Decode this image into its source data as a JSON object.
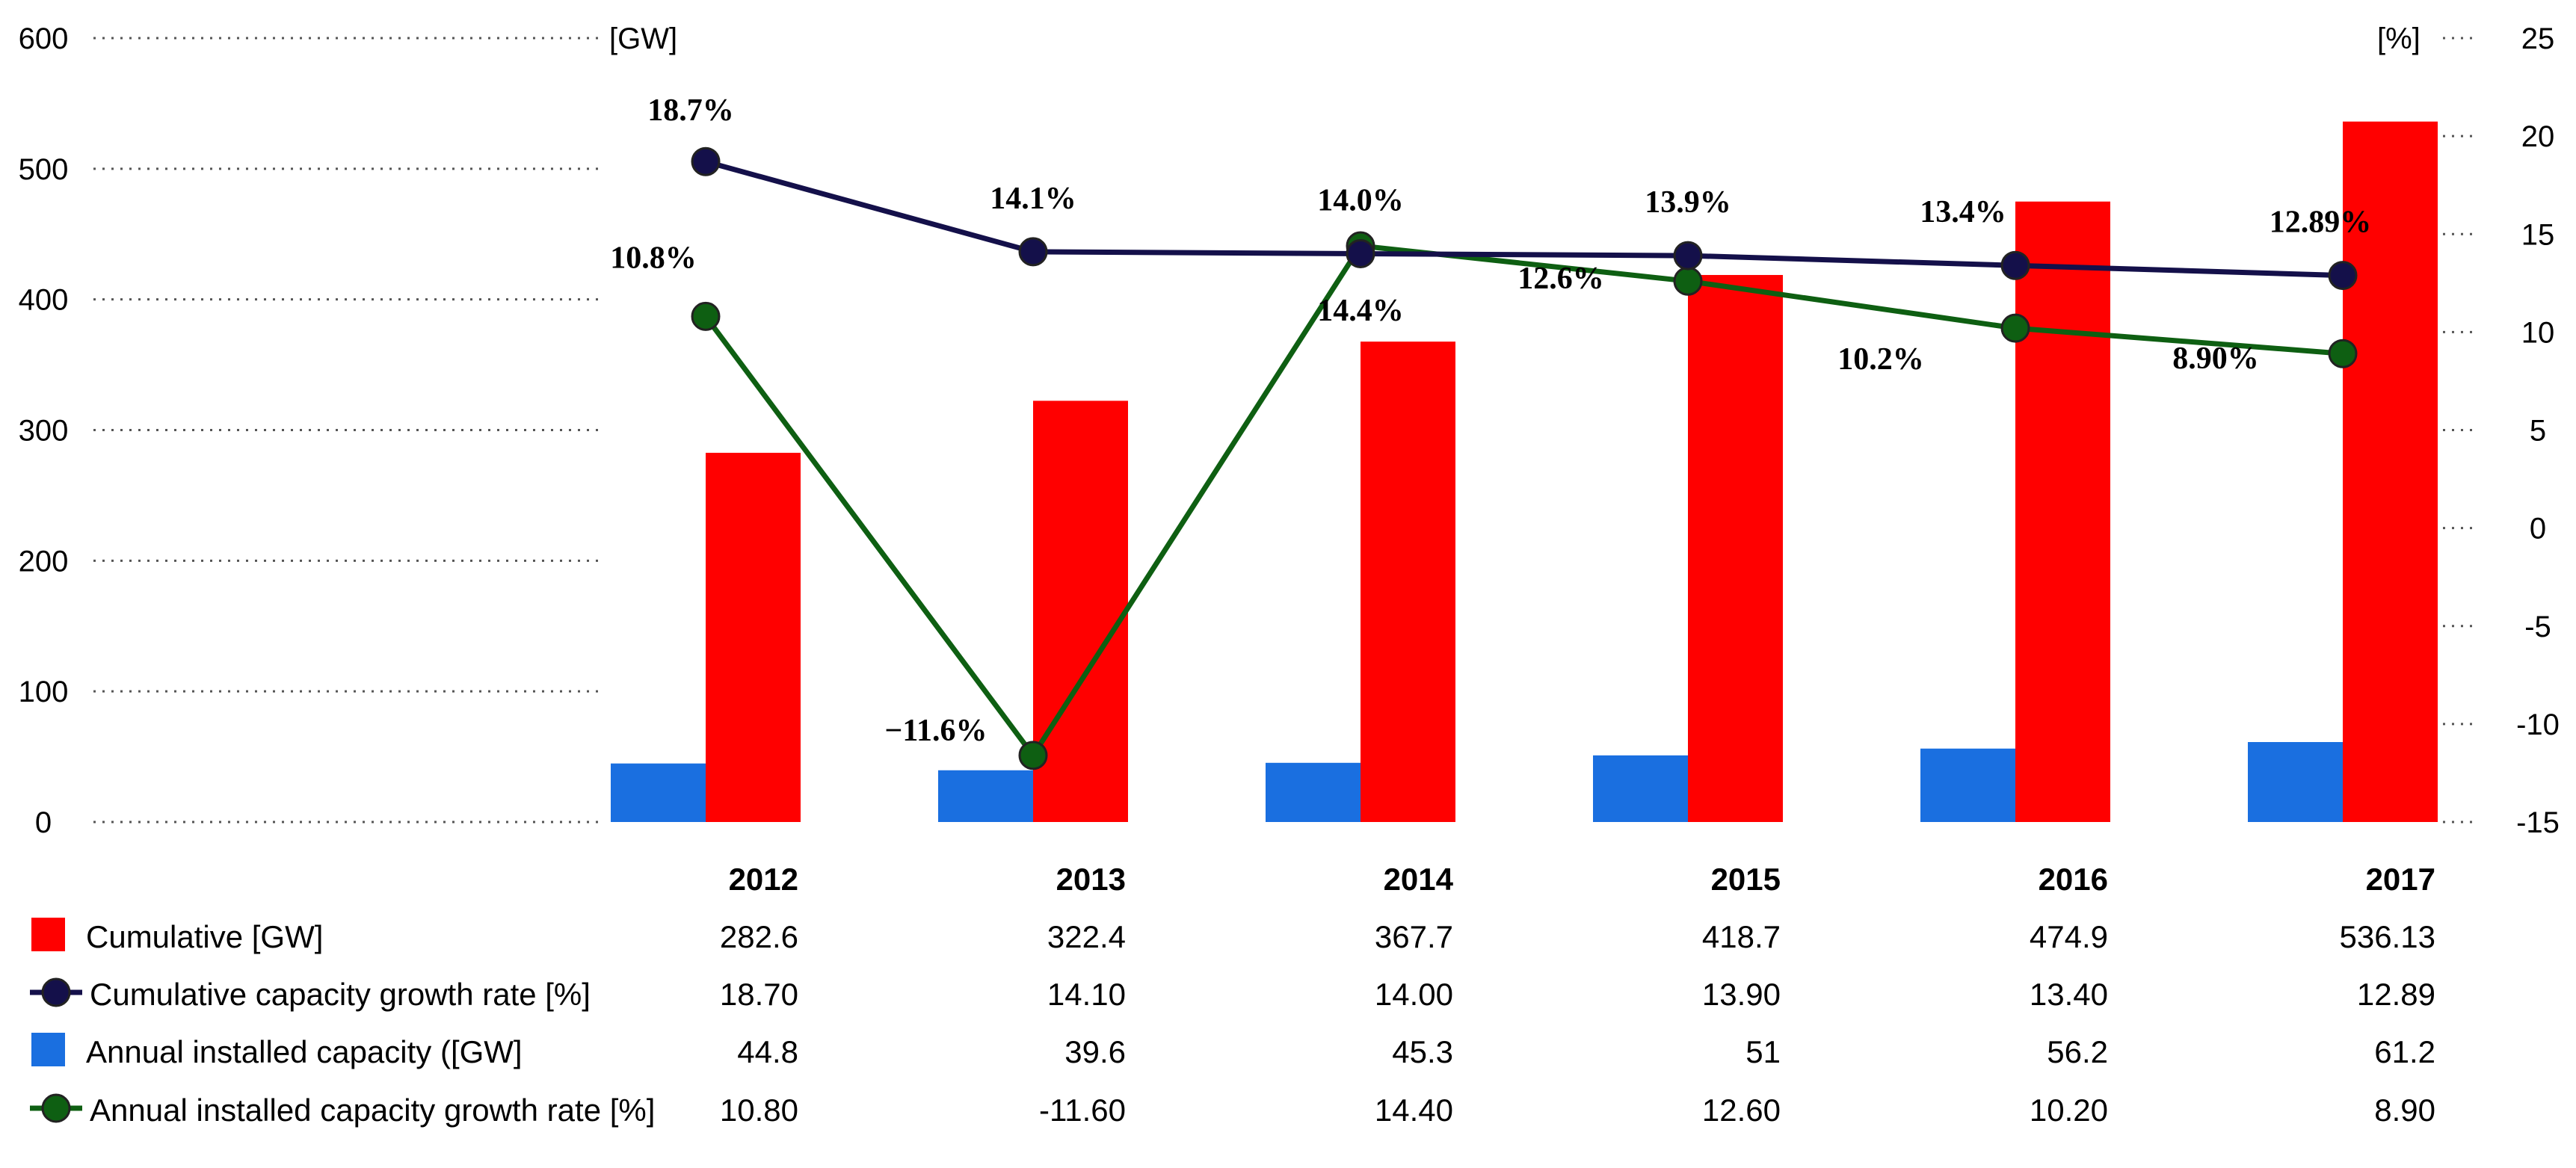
{
  "chart_data": {
    "type": "bar",
    "categories": [
      "2012",
      "2013",
      "2014",
      "2015",
      "2016",
      "2017"
    ],
    "left_axis": {
      "unit": "[GW]",
      "ylim": [
        0,
        600
      ],
      "ticks": [
        0,
        100,
        200,
        300,
        400,
        500,
        600
      ],
      "tick_labels": [
        "0",
        "100",
        "200",
        "300",
        "400",
        "500",
        "600"
      ]
    },
    "right_axis": {
      "unit": "[%]",
      "ylim": [
        -15,
        25
      ],
      "ticks": [
        -15,
        -10,
        -5,
        0,
        5,
        10,
        15,
        20,
        25
      ],
      "tick_labels": [
        "-15",
        "-10",
        "-5",
        "0",
        "5",
        "10",
        "15",
        "20",
        "25"
      ]
    },
    "series": [
      {
        "key": "cumulative",
        "name": "Cumulative [GW]",
        "kind": "bar",
        "axis": "left",
        "color": "#ff0000",
        "values": [
          282.6,
          322.4,
          367.7,
          418.7,
          474.9,
          536.13
        ],
        "table_values": [
          "282.6",
          "322.4",
          "367.7",
          "418.7",
          "474.9",
          "536.13"
        ]
      },
      {
        "key": "cum_growth",
        "name": "Cumulative capacity growth rate [%]",
        "kind": "line",
        "axis": "right",
        "color": "#14104a",
        "values": [
          18.7,
          14.1,
          14.0,
          13.9,
          13.4,
          12.89
        ],
        "labels": [
          "18.7%",
          "14.1%",
          "14.0%",
          "13.9%",
          "13.4%",
          "12.89%"
        ],
        "table_values": [
          "18.70",
          "14.10",
          "14.00",
          "13.90",
          "13.40",
          "12.89"
        ]
      },
      {
        "key": "annual",
        "name": "Annual installed capacity ([GW]",
        "kind": "bar",
        "axis": "left",
        "color": "#1a6fe0",
        "values": [
          44.8,
          39.6,
          45.3,
          51,
          56.2,
          61.2
        ],
        "table_values": [
          "44.8",
          "39.6",
          "45.3",
          "51",
          "56.2",
          "61.2"
        ]
      },
      {
        "key": "annual_growth",
        "name": "Annual installed capacity growth rate [%]",
        "kind": "line",
        "axis": "right",
        "color": "#0e5f12",
        "values": [
          10.8,
          -11.6,
          14.4,
          12.6,
          10.2,
          8.9
        ],
        "labels": [
          "10.8%",
          "−11.6%",
          "14.4%",
          "12.6%",
          "10.2%",
          "8.90%"
        ],
        "table_values": [
          "10.80",
          "-11.60",
          "14.40",
          "12.60",
          "10.20",
          "8.90"
        ]
      }
    ]
  }
}
